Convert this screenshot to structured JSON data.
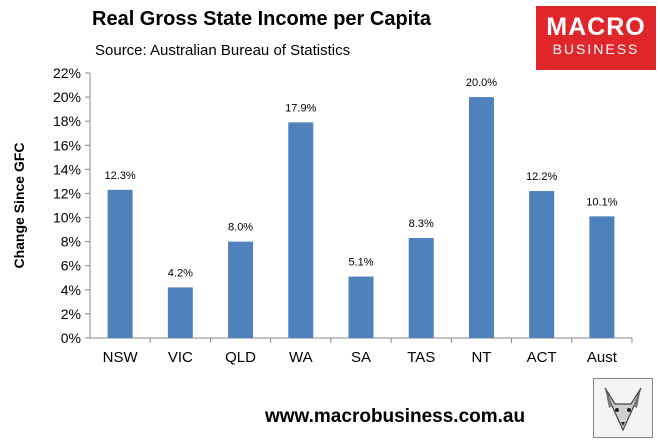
{
  "header": {
    "title": "Real Gross State Income per Capita",
    "subtitle": "Source: Australian Bureau of Statistics"
  },
  "brand": {
    "logo_line1": "MACRO",
    "logo_line2": "BUSINESS",
    "website": "www.macrobusiness.com.au",
    "logo_color": "#e0262a"
  },
  "chart_data": {
    "type": "bar",
    "title": "Real Gross State Income per Capita",
    "subtitle": "Source: Australian Bureau of Statistics",
    "xlabel": "",
    "ylabel": "Change Since GFC",
    "categories": [
      "NSW",
      "VIC",
      "QLD",
      "WA",
      "SA",
      "TAS",
      "NT",
      "ACT",
      "Aust"
    ],
    "values": [
      12.3,
      4.2,
      8.0,
      17.9,
      5.1,
      8.3,
      20.0,
      12.2,
      10.1
    ],
    "data_labels": [
      "12.3%",
      "4.2%",
      "8.0%",
      "17.9%",
      "5.1%",
      "8.3%",
      "20.0%",
      "12.2%",
      "10.1%"
    ],
    "ylim": [
      0,
      22
    ],
    "yticks": [
      0,
      2,
      4,
      6,
      8,
      10,
      12,
      14,
      16,
      18,
      20,
      22
    ],
    "ytick_labels": [
      "0%",
      "2%",
      "4%",
      "6%",
      "8%",
      "10%",
      "12%",
      "14%",
      "16%",
      "18%",
      "20%",
      "22%"
    ],
    "bar_color": "#4f81bd",
    "grid": false,
    "legend": "none"
  }
}
